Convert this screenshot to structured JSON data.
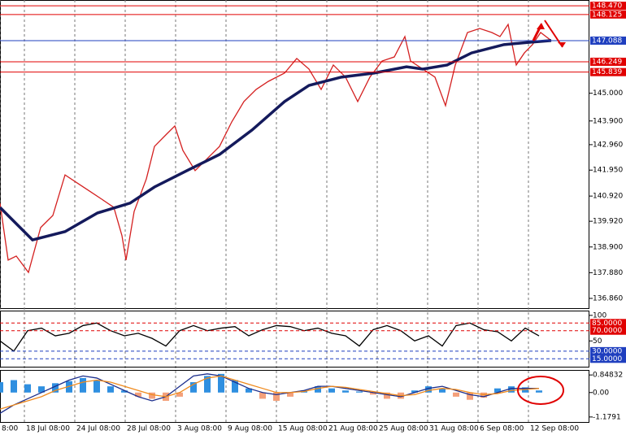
{
  "chart_data": [
    {
      "type": "line",
      "xlim": [
        0,
        725
      ],
      "ylim": [
        136.44,
        148.7
      ],
      "xticks": [
        {
          "value": 0,
          "label": "8:00"
        },
        {
          "value": 30,
          "label": "18 Jul 08:00"
        },
        {
          "value": 92,
          "label": "24 Jul 08:00"
        },
        {
          "value": 154,
          "label": "28 Jul 08:00"
        },
        {
          "value": 216,
          "label": "3 Aug 08:00"
        },
        {
          "value": 278,
          "label": "9 Aug 08:00"
        },
        {
          "value": 340,
          "label": "15 Aug 08:00"
        },
        {
          "value": 402,
          "label": "21 Aug 08:00"
        },
        {
          "value": 464,
          "label": "25 Aug 08:00"
        },
        {
          "value": 526,
          "label": "31 Aug 08:00"
        },
        {
          "value": 588,
          "label": "6 Sep 08:00"
        },
        {
          "value": 650,
          "label": "12 Sep 08:00"
        }
      ],
      "yticks": [
        {
          "value": 145,
          "label": "145.000"
        },
        {
          "value": 143.9,
          "label": "143.900"
        },
        {
          "value": 142.96,
          "label": "142.960"
        },
        {
          "value": 141.95,
          "label": "141.950"
        },
        {
          "value": 140.92,
          "label": "140.920"
        },
        {
          "value": 139.92,
          "label": "139.920"
        },
        {
          "value": 138.9,
          "label": "138.900"
        },
        {
          "value": 137.88,
          "label": "137.880"
        },
        {
          "value": 136.86,
          "label": "136.860"
        }
      ],
      "levels": [
        {
          "value": 148.47,
          "label": "148.470",
          "color": "#e00000"
        },
        {
          "value": 148.125,
          "label": "148.125",
          "color": "#e00000"
        },
        {
          "value": 147.088,
          "label": "147.088",
          "color": "#1f3fbf"
        },
        {
          "value": 146.249,
          "label": "146.249",
          "color": "#e00000"
        },
        {
          "value": 145.839,
          "label": "145.839",
          "color": "#e00000"
        }
      ],
      "grid": true,
      "series": [
        {
          "color": "#d42020",
          "x": [
            0,
            10,
            20,
            35,
            50,
            65,
            80,
            95,
            110,
            125,
            140,
            150,
            155,
            165,
            180,
            190,
            205,
            215,
            225,
            240,
            255,
            270,
            285,
            300,
            315,
            330,
            350,
            365,
            380,
            395,
            410,
            425,
            440,
            455,
            470,
            485,
            498,
            505,
            520,
            535,
            548,
            560,
            575,
            590,
            605,
            615,
            625,
            635,
            645,
            655,
            665,
            678
          ],
          "values": [
            140.64,
            138.38,
            138.54,
            137.89,
            139.67,
            140.15,
            141.76,
            141.44,
            141.12,
            140.8,
            140.47,
            139.35,
            138.38,
            140.31,
            141.6,
            142.89,
            143.38,
            143.7,
            142.73,
            141.93,
            142.41,
            142.89,
            143.86,
            144.67,
            145.15,
            145.47,
            145.8,
            146.38,
            145.96,
            145.15,
            146.12,
            145.64,
            144.67,
            145.64,
            146.28,
            146.44,
            147.25,
            146.28,
            145.96,
            145.64,
            144.51,
            146.12,
            147.41,
            147.57,
            147.41,
            147.25,
            147.73,
            146.12,
            146.6,
            146.93,
            147.41,
            147.09
          ]
        },
        {
          "color": "#141a5c",
          "x": [
            0,
            40,
            80,
            120,
            160,
            190,
            230,
            270,
            310,
            350,
            380,
            420,
            460,
            500,
            520,
            550,
            580,
            620,
            650,
            678
          ],
          "values": [
            140.47,
            139.18,
            139.51,
            140.25,
            140.64,
            141.28,
            141.93,
            142.57,
            143.54,
            144.67,
            145.31,
            145.64,
            145.8,
            146.05,
            145.96,
            146.12,
            146.6,
            146.93,
            147.02,
            147.09
          ]
        }
      ]
    },
    {
      "type": "line",
      "xlim": [
        0,
        725
      ],
      "ylim": [
        -2,
        109.3
      ],
      "yticks": [
        100,
        50
      ],
      "levels": [
        {
          "value": 85,
          "label": "85.0000",
          "color": "#e00000"
        },
        {
          "value": 70,
          "label": "70.0000",
          "color": "#e00000"
        },
        {
          "value": 30,
          "label": "30.0000",
          "color": "#1f3fbf"
        },
        {
          "value": 15,
          "label": "15.0000",
          "color": "#1f3fbf"
        }
      ],
      "series": [
        {
          "color": "#000000",
          "x": [
            0,
            17,
            34,
            51,
            68,
            85,
            102,
            119,
            136,
            153,
            170,
            187,
            204,
            221,
            238,
            255,
            272,
            289,
            306,
            323,
            340,
            357,
            374,
            391,
            408,
            425,
            442,
            459,
            476,
            493,
            510,
            527,
            544,
            561,
            578,
            595,
            612,
            629,
            646,
            663
          ],
          "values": [
            50,
            30,
            70,
            75,
            60,
            65,
            80,
            85,
            70,
            60,
            65,
            55,
            40,
            70,
            80,
            70,
            75,
            78,
            60,
            72,
            80,
            78,
            70,
            75,
            65,
            60,
            40,
            72,
            80,
            70,
            50,
            60,
            40,
            80,
            85,
            72,
            68,
            50,
            75,
            60
          ]
        }
      ]
    },
    {
      "type": "bar",
      "xlim": [
        0,
        725
      ],
      "ylim": [
        -1.46,
        1.09
      ],
      "yticks": [
        0.84832,
        {
          "value": 0,
          "label": "0.00"
        },
        -1.1791
      ],
      "x": [
        0,
        17,
        34,
        51,
        68,
        85,
        102,
        119,
        136,
        153,
        170,
        187,
        204,
        221,
        238,
        255,
        272,
        289,
        306,
        323,
        340,
        357,
        374,
        391,
        408,
        425,
        442,
        459,
        476,
        493,
        510,
        527,
        544,
        561,
        578,
        595,
        612,
        629,
        646,
        663
      ],
      "values": [
        0.5,
        0.6,
        0.4,
        0.3,
        0.45,
        0.55,
        0.7,
        0.6,
        0.3,
        0.1,
        -0.2,
        -0.3,
        -0.4,
        -0.2,
        0.5,
        0.8,
        0.9,
        0.6,
        0.2,
        -0.3,
        -0.4,
        -0.2,
        0.1,
        0.3,
        0.2,
        0.1,
        0.05,
        -0.1,
        -0.3,
        -0.3,
        0.1,
        0.3,
        0.2,
        -0.2,
        -0.35,
        -0.25,
        0.2,
        0.3,
        0.25,
        0.1
      ],
      "colors": {
        "positive": "#2f8fe0",
        "negative": "#f4a07a"
      },
      "series": [
        {
          "color": "#1c2e8c",
          "values": [
            -1.0,
            -0.6,
            -0.3,
            0.0,
            0.3,
            0.6,
            0.8,
            0.7,
            0.4,
            0.1,
            -0.2,
            -0.4,
            -0.2,
            0.3,
            0.8,
            0.9,
            0.8,
            0.5,
            0.2,
            0.0,
            -0.1,
            0.0,
            0.1,
            0.3,
            0.3,
            0.2,
            0.1,
            0.0,
            -0.1,
            -0.2,
            0.0,
            0.2,
            0.3,
            0.1,
            -0.1,
            -0.2,
            0.0,
            0.2,
            0.2,
            0.2
          ]
        },
        {
          "color": "#f08a1c",
          "values": [
            -0.8,
            -0.6,
            -0.4,
            -0.2,
            0.1,
            0.3,
            0.5,
            0.6,
            0.5,
            0.3,
            0.1,
            -0.1,
            -0.2,
            0.0,
            0.4,
            0.7,
            0.8,
            0.6,
            0.4,
            0.2,
            0.0,
            0.0,
            0.05,
            0.2,
            0.3,
            0.25,
            0.15,
            0.05,
            -0.05,
            -0.15,
            -0.1,
            0.1,
            0.2,
            0.15,
            0.0,
            -0.1,
            -0.05,
            0.1,
            0.15,
            0.2
          ]
        }
      ]
    }
  ]
}
